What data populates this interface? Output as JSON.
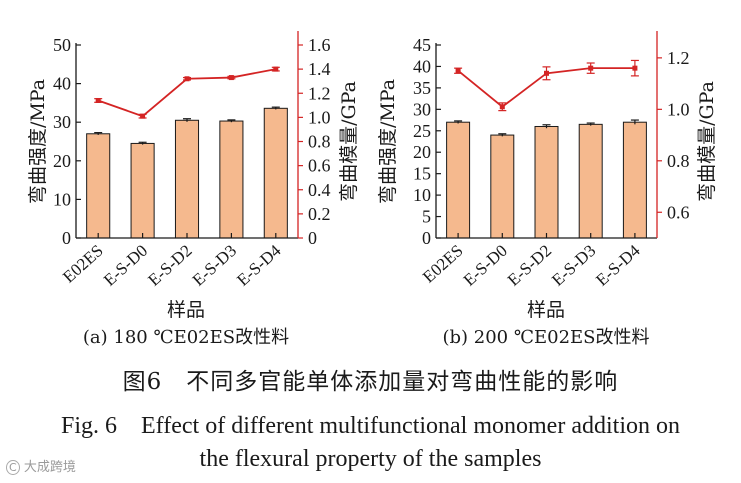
{
  "chart_data": [
    {
      "type": "bar+line",
      "categories": [
        "E02ES",
        "E-S-D0",
        "E-S-D2",
        "E-S-D3",
        "E-S-D4"
      ],
      "bar_series": {
        "name": "弯曲强度/MPa",
        "values": [
          27.0,
          24.5,
          30.5,
          30.3,
          33.6
        ],
        "errors": [
          0.3,
          0.3,
          0.4,
          0.3,
          0.3
        ],
        "color": "#f5b98e"
      },
      "line_series": {
        "name": "弯曲模量/GPa",
        "values": [
          1.14,
          1.01,
          1.32,
          1.33,
          1.4
        ],
        "errors": [
          0.015,
          0.015,
          0.01,
          0.01,
          0.015
        ],
        "color": "#d42424"
      },
      "ylabel_left": "弯曲强度/MPa",
      "ylabel_right": "弯曲模量/GPa",
      "xlabel": "样品",
      "ylim_left": [
        0,
        50
      ],
      "yticks_left": [
        "0",
        "10",
        "20",
        "30",
        "40",
        "50"
      ],
      "ylim_right": [
        0,
        1.6
      ],
      "yticks_right": [
        "0",
        "0.2",
        "0.4",
        "0.6",
        "0.8",
        "1.0",
        "1.2",
        "1.4",
        "1.6"
      ],
      "caption": "(a) 180 ℃E02ES改性料"
    },
    {
      "type": "bar+line",
      "categories": [
        "E02ES",
        "E-S-D0",
        "E-S-D2",
        "E-S-D3",
        "E-S-D4"
      ],
      "bar_series": {
        "name": "弯曲强度/MPa",
        "values": [
          27.0,
          24.0,
          26.0,
          26.5,
          27.0
        ],
        "errors": [
          0.3,
          0.3,
          0.4,
          0.3,
          0.5
        ],
        "color": "#f5b98e"
      },
      "line_series": {
        "name": "弯曲模量/GPa",
        "values": [
          1.15,
          1.01,
          1.14,
          1.16,
          1.16
        ],
        "errors": [
          0.01,
          0.015,
          0.025,
          0.02,
          0.03
        ],
        "color": "#d42424"
      },
      "ylabel_left": "弯曲强度/MPa",
      "ylabel_right": "弯曲模量/GPa",
      "xlabel": "样品",
      "ylim_left": [
        0,
        45
      ],
      "yticks_left": [
        "0",
        "5",
        "10",
        "15",
        "20",
        "25",
        "30",
        "35",
        "40",
        "45"
      ],
      "ylim_right": [
        0.5,
        1.25
      ],
      "yticks_right": [
        "0.6",
        "0.8",
        "1.0",
        "1.2"
      ],
      "caption": "(b) 200 ℃E02ES改性料"
    }
  ],
  "figure_caption_cn": "图6　不同多官能单体添加量对弯曲性能的影响",
  "figure_caption_en_line1": "Fig. 6　Effect of different multifunctional monomer addition on",
  "figure_caption_en_line2": "the flexural property of the samples",
  "watermark": "大成跨境"
}
